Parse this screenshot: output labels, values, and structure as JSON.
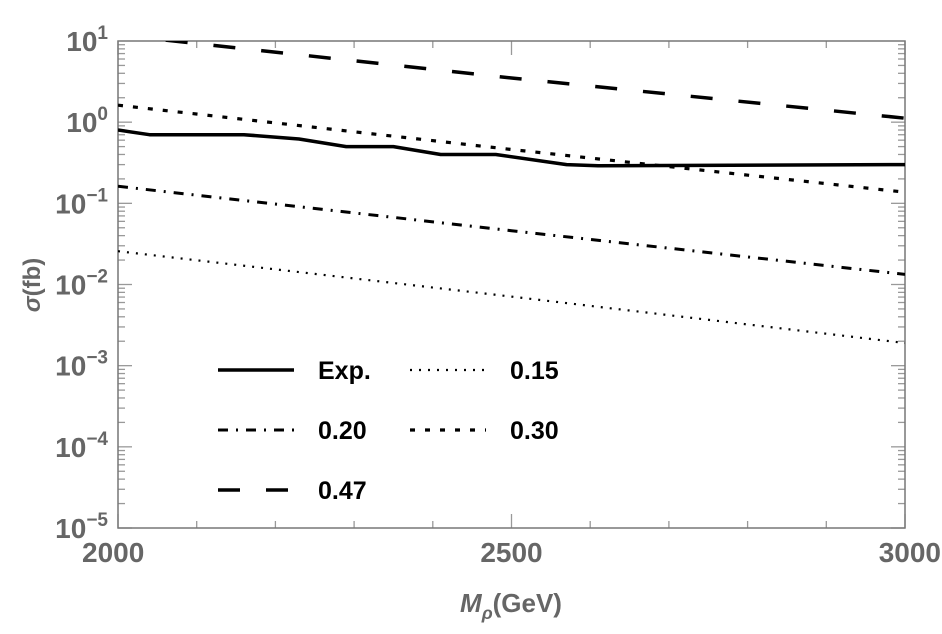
{
  "chart_data": {
    "type": "line",
    "title": "",
    "xlabel": "M_ρ(GeV)",
    "xlabel_main": "M",
    "xlabel_sub": "ρ",
    "xlabel_unit": "(GeV)",
    "ylabel": "σ(fb)",
    "ylabel_main": "σ",
    "ylabel_unit": "(fb)",
    "xlim": [
      2000,
      3000
    ],
    "ylim": [
      1e-05,
      10
    ],
    "yscale": "log",
    "xticks": [
      "2000",
      "2500",
      "3000"
    ],
    "xtick_values": [
      2000,
      2500,
      3000
    ],
    "yticks": [
      {
        "base": "10",
        "exp": "1",
        "value": 10
      },
      {
        "base": "10",
        "exp": "0",
        "value": 1
      },
      {
        "base": "10",
        "exp": "−1",
        "value": 0.1
      },
      {
        "base": "10",
        "exp": "−2",
        "value": 0.01
      },
      {
        "base": "10",
        "exp": "−3",
        "value": 0.001
      },
      {
        "base": "10",
        "exp": "−4",
        "value": 0.0001
      },
      {
        "base": "10",
        "exp": "−5",
        "value": 1e-05
      }
    ],
    "legend_position": "bottom-left",
    "series": [
      {
        "name": "Exp.",
        "style": "solid",
        "x": [
          2000,
          2040,
          2160,
          2230,
          2290,
          2350,
          2410,
          2480,
          2570,
          2610,
          3000
        ],
        "y": [
          0.8,
          0.7,
          0.7,
          0.62,
          0.5,
          0.5,
          0.4,
          0.4,
          0.3,
          0.29,
          0.3
        ]
      },
      {
        "name": "0.15",
        "style": "dotted",
        "x": [
          2000,
          2500,
          3000
        ],
        "y": [
          0.0257,
          0.0071,
          0.0019
        ]
      },
      {
        "name": "0.20",
        "style": "dashdot",
        "x": [
          2000,
          2500,
          3000
        ],
        "y": [
          0.162,
          0.046,
          0.0133
        ]
      },
      {
        "name": "0.30",
        "style": "shortdash",
        "x": [
          2000,
          2500,
          3000
        ],
        "y": [
          1.62,
          0.46,
          0.137
        ]
      },
      {
        "name": "0.47",
        "style": "longdash",
        "x": [
          2000,
          2500,
          3000
        ],
        "y": [
          11.9,
          3.5,
          1.12
        ]
      }
    ]
  }
}
